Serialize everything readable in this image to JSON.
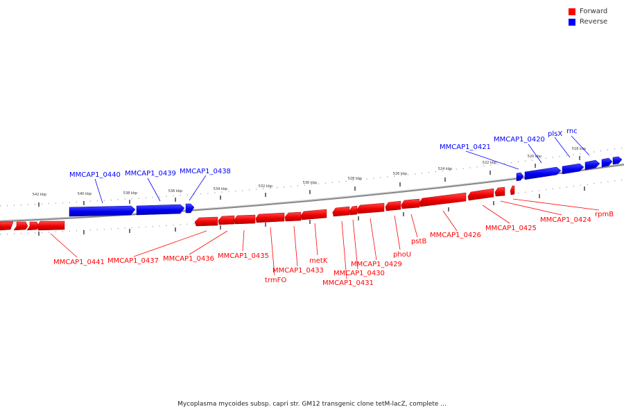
{
  "legend": {
    "forward": {
      "label": "Forward",
      "color": "#ff0000"
    },
    "reverse": {
      "label": "Reverse",
      "color": "#0000ff"
    }
  },
  "caption": "Mycoplasma mycoides subsp. capri str. GM12 transgenic clone tetM-lacZ, complete ...",
  "scale_labels": [
    "542 kbp",
    "540 kbp",
    "538 kbp",
    "536 kbp",
    "534 kbp",
    "532 kbp",
    "530 kbp",
    "528 kbp",
    "526 kbp",
    "524 kbp",
    "522 kbp",
    "520 kbp",
    "518 kbp"
  ],
  "reverse_labels": [
    "MMCAP1_0440",
    "MMCAP1_0439",
    "MMCAP1_0438",
    "MMCAP1_0421",
    "MMCAP1_0420",
    "plsX",
    "rnc"
  ],
  "forward_labels": [
    "MMCAP1_0441",
    "MMCAP1_0437",
    "MMCAP1_0436",
    "MMCAP1_0435",
    "trmFO",
    "MMCAP1_0433",
    "metK",
    "MMCAP1_0431",
    "MMCAP1_0430",
    "MMCAP1_0429",
    "phoU",
    "pstB",
    "MMCAP1_0426",
    "MMCAP1_0425",
    "MMCAP1_0424",
    "rpmB"
  ]
}
